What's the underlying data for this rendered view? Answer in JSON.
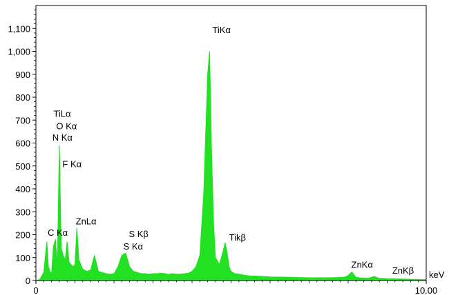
{
  "chart_data": {
    "type": "area",
    "title": "",
    "xlabel": "",
    "ylabel": "",
    "x_unit": "keV",
    "xlim": [
      0,
      10
    ],
    "ylim": [
      0,
      1200
    ],
    "x_ticks": [
      "0",
      "10.00"
    ],
    "y_ticks": [
      "0",
      "100",
      "200",
      "300",
      "400",
      "500",
      "600",
      "700",
      "800",
      "900",
      "1,000",
      "1,100"
    ],
    "grid": false,
    "fill_color": "#22e022",
    "spectrum": {
      "x": [
        0.0,
        0.1,
        0.2,
        0.28,
        0.32,
        0.36,
        0.4,
        0.45,
        0.5,
        0.55,
        0.6,
        0.65,
        0.7,
        0.75,
        0.8,
        0.85,
        0.9,
        0.95,
        1.0,
        1.05,
        1.1,
        1.15,
        1.2,
        1.3,
        1.4,
        1.5,
        1.6,
        1.7,
        1.8,
        1.9,
        2.0,
        2.1,
        2.2,
        2.3,
        2.4,
        2.5,
        2.6,
        2.7,
        2.8,
        2.9,
        3.0,
        3.1,
        3.2,
        3.3,
        3.4,
        3.5,
        3.6,
        3.7,
        3.8,
        3.9,
        4.0,
        4.1,
        4.2,
        4.3,
        4.4,
        4.45,
        4.5,
        4.55,
        4.6,
        4.7,
        4.8,
        4.85,
        4.9,
        4.95,
        5.0,
        5.05,
        5.1,
        5.2,
        5.3,
        5.4,
        5.5,
        5.6,
        5.8,
        6.0,
        6.5,
        7.0,
        7.5,
        7.9,
        8.0,
        8.05,
        8.1,
        8.15,
        8.2,
        8.3,
        8.5,
        8.6,
        8.65,
        8.7,
        8.75,
        8.8,
        9.0,
        9.5,
        10.0
      ],
      "y": [
        0,
        5,
        35,
        170,
        60,
        40,
        30,
        150,
        180,
        70,
        590,
        140,
        110,
        90,
        170,
        80,
        70,
        60,
        70,
        230,
        90,
        70,
        50,
        40,
        45,
        110,
        40,
        35,
        30,
        28,
        30,
        60,
        110,
        120,
        60,
        40,
        35,
        30,
        30,
        28,
        30,
        30,
        32,
        30,
        28,
        30,
        28,
        28,
        30,
        32,
        40,
        60,
        110,
        380,
        900,
        1000,
        560,
        260,
        100,
        70,
        130,
        165,
        120,
        60,
        40,
        35,
        30,
        28,
        25,
        22,
        20,
        20,
        18,
        16,
        14,
        12,
        12,
        14,
        22,
        30,
        38,
        24,
        14,
        12,
        10,
        14,
        18,
        16,
        12,
        10,
        8,
        6,
        4
      ]
    },
    "annotations": [
      {
        "text": "TiKα",
        "x": 4.52,
        "y": 1080
      },
      {
        "text": "TiLα",
        "x": 0.45,
        "y": 715
      },
      {
        "text": "O Kα",
        "x": 0.52,
        "y": 660
      },
      {
        "text": "N Kα",
        "x": 0.42,
        "y": 610
      },
      {
        "text": "F Kα",
        "x": 0.68,
        "y": 495
      },
      {
        "text": "ZnLα",
        "x": 1.02,
        "y": 245
      },
      {
        "text": "C Kα",
        "x": 0.3,
        "y": 195
      },
      {
        "text": "S Kβ",
        "x": 2.38,
        "y": 190
      },
      {
        "text": "S Kα",
        "x": 2.24,
        "y": 135
      },
      {
        "text": "Tikβ",
        "x": 4.95,
        "y": 175
      },
      {
        "text": "ZnKα",
        "x": 8.08,
        "y": 55
      },
      {
        "text": "ZnKβ",
        "x": 9.13,
        "y": 30
      }
    ]
  }
}
